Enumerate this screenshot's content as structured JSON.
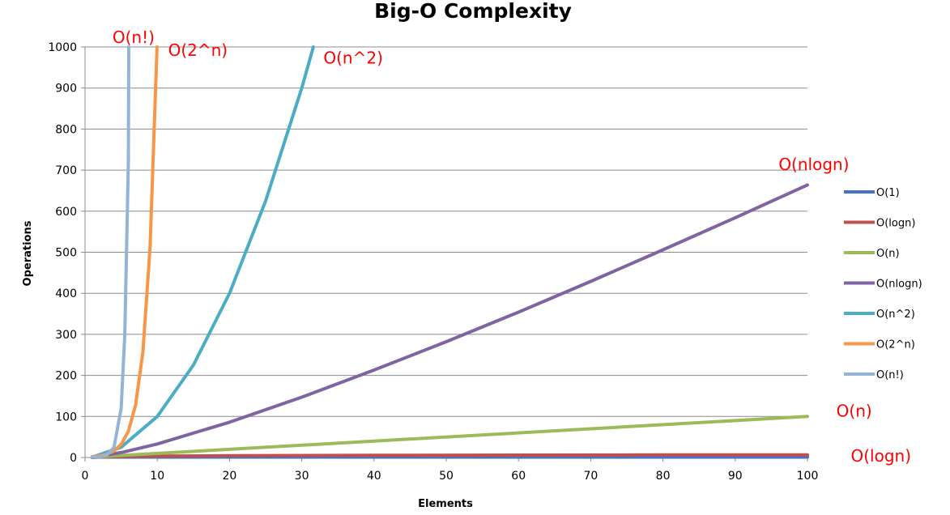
{
  "chart_data": {
    "type": "line",
    "title": "Big-O Complexity",
    "xlabel": "Elements",
    "ylabel": "Operations",
    "xlim": [
      0,
      100
    ],
    "ylim": [
      0,
      1000
    ],
    "xticks": [
      0,
      10,
      20,
      30,
      40,
      50,
      60,
      70,
      80,
      90,
      100
    ],
    "yticks": [
      0,
      100,
      200,
      300,
      400,
      500,
      600,
      700,
      800,
      900,
      1000
    ],
    "grid": "horizontal",
    "legend_position": "right",
    "series": [
      {
        "name": "O(1)",
        "color": "#4472C4",
        "x": [
          1,
          100
        ],
        "y": [
          1,
          1
        ]
      },
      {
        "name": "O(logn)",
        "color": "#C0504D",
        "x": [
          1,
          2,
          5,
          10,
          20,
          40,
          60,
          80,
          100
        ],
        "y": [
          0,
          1,
          2.3,
          3.3,
          4.3,
          5.3,
          5.9,
          6.3,
          6.6
        ]
      },
      {
        "name": "O(n)",
        "color": "#9BBB59",
        "x": [
          1,
          100
        ],
        "y": [
          1,
          100
        ]
      },
      {
        "name": "O(nlogn)",
        "color": "#8064A2",
        "x": [
          1,
          5,
          10,
          20,
          30,
          40,
          50,
          60,
          70,
          80,
          90,
          100
        ],
        "y": [
          0,
          12,
          33,
          86,
          147,
          213,
          282,
          354,
          429,
          506,
          584,
          664
        ]
      },
      {
        "name": "O(n^2)",
        "color": "#4BACC6",
        "x": [
          1,
          5,
          10,
          15,
          20,
          25,
          30,
          31.6
        ],
        "y": [
          1,
          25,
          100,
          225,
          400,
          625,
          900,
          1000
        ]
      },
      {
        "name": "O(2^n)",
        "color": "#F79646",
        "x": [
          1,
          2,
          3,
          4,
          5,
          6,
          7,
          8,
          9,
          9.97
        ],
        "y": [
          2,
          4,
          8,
          16,
          32,
          64,
          128,
          256,
          512,
          1000
        ]
      },
      {
        "name": "O(n!)",
        "color": "#95B3D7",
        "x": [
          1,
          2,
          3,
          4,
          5,
          5.5,
          6,
          6.05
        ],
        "y": [
          1,
          2,
          6,
          24,
          120,
          300,
          720,
          1000
        ]
      }
    ],
    "annotations": [
      {
        "text": "O(n!)",
        "x": 3.8,
        "y": 1010
      },
      {
        "text": "O(2^n)",
        "x": 11.5,
        "y": 978
      },
      {
        "text": "O(n^2)",
        "x": 33,
        "y": 960
      },
      {
        "text": "O(nlogn)",
        "x": 96,
        "y": 700
      },
      {
        "text": "O(n)",
        "x": 104,
        "y": 100
      },
      {
        "text": "O(logn)",
        "x": 106,
        "y": -10
      }
    ]
  }
}
